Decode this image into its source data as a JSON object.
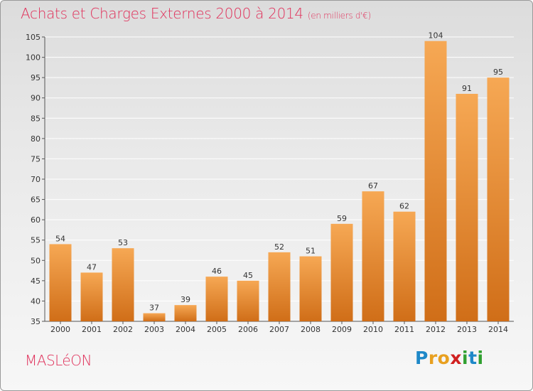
{
  "header": {
    "title": "Achats et Charges Externes 2000 à 2014",
    "unit_note": "(en milliers d'€)"
  },
  "footer": {
    "commune": "MASLéON",
    "logo_letters": [
      {
        "ch": "P",
        "color": "#1e88c8"
      },
      {
        "ch": "r",
        "color": "#e8a020"
      },
      {
        "ch": "o",
        "color": "#e8a020"
      },
      {
        "ch": "x",
        "color": "#d02020"
      },
      {
        "ch": "i",
        "color": "#30a030"
      },
      {
        "ch": "t",
        "color": "#1e88c8"
      },
      {
        "ch": "i",
        "color": "#30a030"
      }
    ]
  },
  "chart_data": {
    "type": "bar",
    "title": "Achats et Charges Externes 2000 à 2014",
    "subtitle": "(en milliers d'€)",
    "categories": [
      "2000",
      "2001",
      "2002",
      "2003",
      "2004",
      "2005",
      "2006",
      "2007",
      "2008",
      "2009",
      "2010",
      "2011",
      "2012",
      "2013",
      "2014"
    ],
    "values": [
      54,
      47,
      53,
      37,
      39,
      46,
      45,
      52,
      51,
      59,
      67,
      62,
      104,
      91,
      95
    ],
    "ylim": [
      35,
      105
    ],
    "yticks": [
      35,
      40,
      45,
      50,
      55,
      60,
      65,
      70,
      75,
      80,
      85,
      90,
      95,
      100,
      105
    ],
    "grid": true,
    "data_labels": true,
    "colors": {
      "bar_light": "#f6a854",
      "bar_dark": "#d06e18",
      "grid": "#ffffff",
      "text": "#333333"
    }
  }
}
